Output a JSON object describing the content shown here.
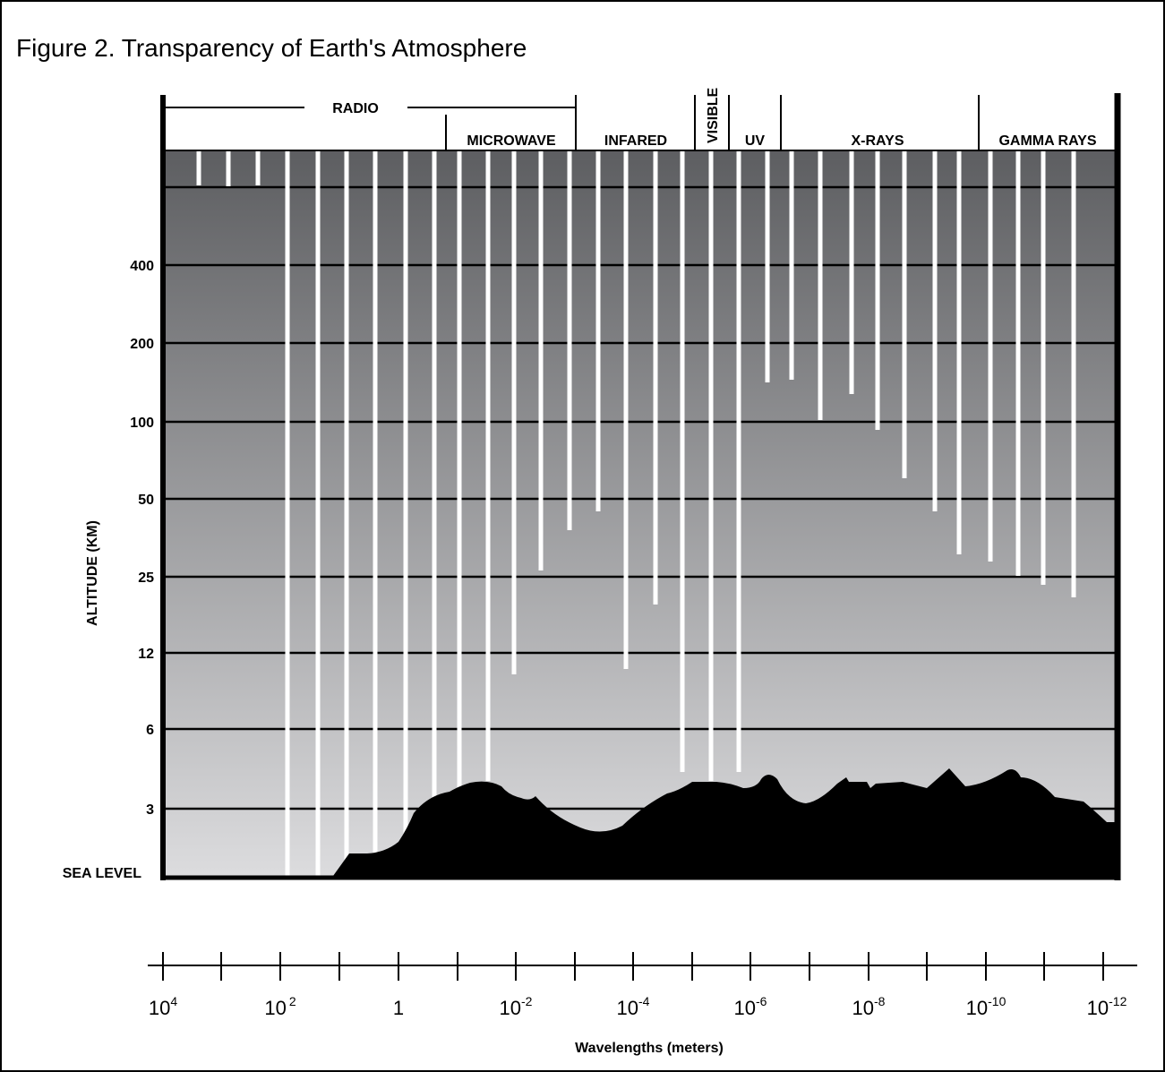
{
  "title": "Figure 2. Transparency of Earth's Atmosphere",
  "colors": {
    "gradient_top": "#5d5e61",
    "gradient_bottom": "#dcdcde",
    "ground": "#000000",
    "window_lines": "#ffffff"
  },
  "bands": [
    {
      "label": "RADIO"
    },
    {
      "label": "MICROWAVE"
    },
    {
      "label": "INFARED"
    },
    {
      "label": "VISIBLE"
    },
    {
      "label": "UV"
    },
    {
      "label": "X-RAYS"
    },
    {
      "label": "GAMMA RAYS"
    }
  ],
  "y_axis": {
    "label": "ALTITUDE (KM)",
    "ticks": [
      "400",
      "200",
      "100",
      "50",
      "25",
      "12",
      "6",
      "3",
      "SEA LEVEL"
    ]
  },
  "x_axis": {
    "label": "Wavelengths (meters)",
    "ticks": [
      {
        "base": "10",
        "exp": "4"
      },
      {
        "base": "10",
        "exp": "2"
      },
      {
        "base": "1",
        "exp": ""
      },
      {
        "base": "10",
        "exp": "-2"
      },
      {
        "base": "10",
        "exp": "-4"
      },
      {
        "base": "10",
        "exp": "-6"
      },
      {
        "base": "10",
        "exp": "-8"
      },
      {
        "base": "10",
        "exp": "-10"
      },
      {
        "base": "10",
        "exp": "-12"
      }
    ]
  }
}
